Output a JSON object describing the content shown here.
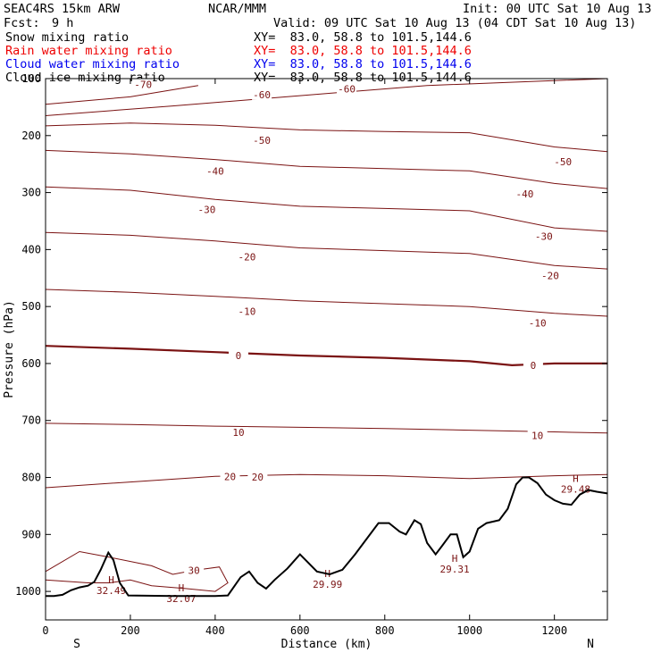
{
  "header": {
    "model": "SEAC4RS 15km ARW",
    "org": "NCAR/MMM",
    "init": "Init: 00 UTC Sat 10 Aug 13",
    "fcst_label": "Fcst:",
    "fcst_value": "9 h",
    "valid": "Valid: 09 UTC Sat 10 Aug 13 (04 CDT Sat 10 Aug 13)"
  },
  "fields": [
    {
      "name": "Snow mixing ratio",
      "xy": "XY=  83.0, 58.8 to 101.5,144.6",
      "color": "#000000"
    },
    {
      "name": "Rain water mixing ratio",
      "xy": "XY=  83.0, 58.8 to 101.5,144.6",
      "color": "#ee0000"
    },
    {
      "name": "Cloud water mixing ratio",
      "xy": "XY=  83.0, 58.8 to 101.5,144.6",
      "color": "#0000ee"
    },
    {
      "name": "Cloud ice mixing ratio",
      "xy": "XY=  83.0, 58.8 to 101.5,144.6",
      "color": "#000000"
    }
  ],
  "colors": {
    "contour": "#7a1212",
    "terrain": "#000000",
    "frame": "#000000"
  },
  "chart_data": {
    "type": "line",
    "xlabel": "Distance (km)",
    "ylabel": "Pressure (hPa)",
    "xlim": [
      0,
      1325
    ],
    "ylim": [
      100,
      1050
    ],
    "y_inverted": true,
    "xticks": [
      0,
      200,
      400,
      600,
      800,
      1000,
      1200
    ],
    "yticks": [
      100,
      200,
      300,
      400,
      500,
      600,
      700,
      800,
      900,
      1000
    ],
    "end_labels": {
      "left": "S",
      "right": "N"
    },
    "isotherms": [
      {
        "temp": -70,
        "labels": [
          {
            "x": 230,
            "p": 110
          }
        ],
        "points": [
          [
            0,
            145
          ],
          [
            200,
            132
          ],
          [
            360,
            112
          ]
        ]
      },
      {
        "temp": -60,
        "labels": [
          {
            "x": 510,
            "p": 128
          },
          {
            "x": 710,
            "p": 118
          }
        ],
        "points": [
          [
            0,
            165
          ],
          [
            300,
            148
          ],
          [
            600,
            130
          ],
          [
            900,
            112
          ],
          [
            1325,
            100
          ]
        ]
      },
      {
        "temp": -50,
        "labels": [
          {
            "x": 510,
            "p": 208
          },
          {
            "x": 1220,
            "p": 246
          }
        ],
        "points": [
          [
            0,
            183
          ],
          [
            200,
            178
          ],
          [
            400,
            182
          ],
          [
            600,
            190
          ],
          [
            800,
            193
          ],
          [
            1000,
            195
          ],
          [
            1200,
            220
          ],
          [
            1325,
            228
          ]
        ]
      },
      {
        "temp": -40,
        "labels": [
          {
            "x": 400,
            "p": 262
          },
          {
            "x": 1130,
            "p": 302
          }
        ],
        "points": [
          [
            0,
            226
          ],
          [
            200,
            232
          ],
          [
            400,
            242
          ],
          [
            600,
            254
          ],
          [
            800,
            258
          ],
          [
            1000,
            262
          ],
          [
            1200,
            284
          ],
          [
            1325,
            293
          ]
        ]
      },
      {
        "temp": -30,
        "labels": [
          {
            "x": 380,
            "p": 330
          },
          {
            "x": 1175,
            "p": 377
          }
        ],
        "points": [
          [
            0,
            290
          ],
          [
            200,
            296
          ],
          [
            400,
            312
          ],
          [
            600,
            324
          ],
          [
            800,
            328
          ],
          [
            1000,
            332
          ],
          [
            1200,
            362
          ],
          [
            1325,
            368
          ]
        ]
      },
      {
        "temp": -20,
        "labels": [
          {
            "x": 475,
            "p": 413
          },
          {
            "x": 1190,
            "p": 446
          }
        ],
        "points": [
          [
            0,
            370
          ],
          [
            200,
            375
          ],
          [
            400,
            385
          ],
          [
            600,
            397
          ],
          [
            800,
            402
          ],
          [
            1000,
            407
          ],
          [
            1200,
            428
          ],
          [
            1325,
            434
          ]
        ]
      },
      {
        "temp": -10,
        "labels": [
          {
            "x": 475,
            "p": 508
          },
          {
            "x": 1160,
            "p": 529
          }
        ],
        "points": [
          [
            0,
            470
          ],
          [
            200,
            475
          ],
          [
            400,
            482
          ],
          [
            600,
            490
          ],
          [
            800,
            495
          ],
          [
            1000,
            500
          ],
          [
            1200,
            512
          ],
          [
            1325,
            517
          ]
        ]
      },
      {
        "temp": 0,
        "labels": [
          {
            "x": 455,
            "p": 586
          },
          {
            "x": 1150,
            "p": 603
          }
        ],
        "points": [
          [
            0,
            569
          ],
          [
            200,
            574
          ],
          [
            400,
            580
          ],
          [
            600,
            586
          ],
          [
            800,
            590
          ],
          [
            1000,
            596
          ],
          [
            1100,
            603
          ],
          [
            1200,
            600
          ],
          [
            1325,
            600
          ]
        ]
      },
      {
        "temp": 10,
        "labels": [
          {
            "x": 455,
            "p": 721
          },
          {
            "x": 1160,
            "p": 726
          }
        ],
        "points": [
          [
            0,
            705
          ],
          [
            200,
            707
          ],
          [
            400,
            710
          ],
          [
            600,
            712
          ],
          [
            800,
            714
          ],
          [
            1000,
            717
          ],
          [
            1200,
            720
          ],
          [
            1325,
            722
          ]
        ]
      },
      {
        "temp": 20,
        "labels": [
          {
            "x": 435,
            "p": 798
          },
          {
            "x": 500,
            "p": 799
          }
        ],
        "points": [
          [
            0,
            818
          ],
          [
            200,
            808
          ],
          [
            400,
            798
          ],
          [
            600,
            795
          ],
          [
            800,
            797
          ],
          [
            1000,
            802
          ],
          [
            1200,
            797
          ],
          [
            1325,
            795
          ]
        ]
      },
      {
        "temp": 30,
        "labels": [
          {
            "x": 350,
            "p": 963
          }
        ],
        "points": [
          [
            0,
            965
          ],
          [
            80,
            930
          ],
          [
            150,
            940
          ],
          [
            250,
            955
          ],
          [
            300,
            970
          ],
          [
            350,
            963
          ],
          [
            410,
            957
          ],
          [
            430,
            985
          ],
          [
            400,
            1000
          ],
          [
            330,
            995
          ],
          [
            250,
            990
          ],
          [
            200,
            980
          ],
          [
            150,
            985
          ],
          [
            100,
            985
          ],
          [
            0,
            980
          ]
        ]
      }
    ],
    "highs": [
      {
        "x": 155,
        "p": 986,
        "value": "32.49"
      },
      {
        "x": 320,
        "p": 1000,
        "value": "32.07"
      },
      {
        "x": 665,
        "p": 975,
        "value": "29.99"
      },
      {
        "x": 965,
        "p": 948,
        "value": "29.31"
      },
      {
        "x": 1250,
        "p": 808,
        "value": "29.48"
      }
    ],
    "terrain": [
      [
        0,
        1008
      ],
      [
        20,
        1008
      ],
      [
        40,
        1006
      ],
      [
        60,
        998
      ],
      [
        80,
        993
      ],
      [
        100,
        990
      ],
      [
        115,
        983
      ],
      [
        130,
        962
      ],
      [
        148,
        932
      ],
      [
        160,
        945
      ],
      [
        175,
        985
      ],
      [
        195,
        1007
      ],
      [
        300,
        1008
      ],
      [
        400,
        1008
      ],
      [
        430,
        1007
      ],
      [
        460,
        975
      ],
      [
        480,
        965
      ],
      [
        500,
        985
      ],
      [
        520,
        995
      ],
      [
        540,
        980
      ],
      [
        570,
        960
      ],
      [
        600,
        935
      ],
      [
        620,
        950
      ],
      [
        640,
        965
      ],
      [
        670,
        970
      ],
      [
        700,
        962
      ],
      [
        730,
        935
      ],
      [
        760,
        905
      ],
      [
        785,
        880
      ],
      [
        810,
        880
      ],
      [
        835,
        895
      ],
      [
        850,
        900
      ],
      [
        870,
        875
      ],
      [
        885,
        882
      ],
      [
        900,
        915
      ],
      [
        920,
        935
      ],
      [
        935,
        920
      ],
      [
        955,
        900
      ],
      [
        970,
        900
      ],
      [
        985,
        940
      ],
      [
        1000,
        930
      ],
      [
        1020,
        890
      ],
      [
        1040,
        880
      ],
      [
        1070,
        875
      ],
      [
        1090,
        855
      ],
      [
        1110,
        812
      ],
      [
        1125,
        800
      ],
      [
        1140,
        800
      ],
      [
        1160,
        810
      ],
      [
        1180,
        830
      ],
      [
        1200,
        840
      ],
      [
        1220,
        846
      ],
      [
        1240,
        848
      ],
      [
        1260,
        830
      ],
      [
        1280,
        822
      ],
      [
        1300,
        825
      ],
      [
        1325,
        828
      ]
    ]
  }
}
